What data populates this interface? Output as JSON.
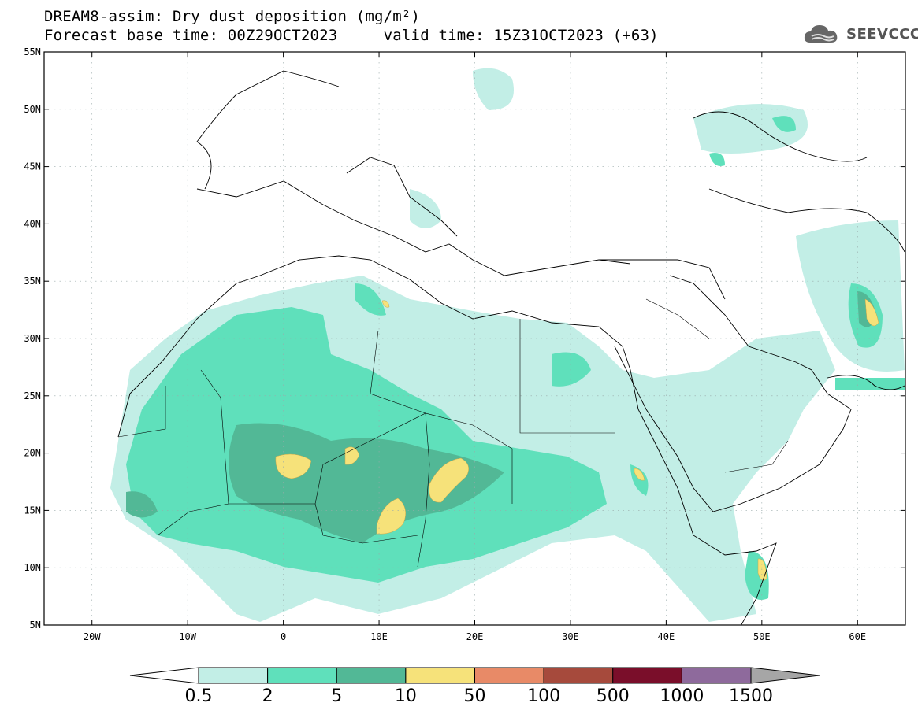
{
  "title_line1": "DREAM8-assim: Dry dust deposition (mg/m²)",
  "title_line2": "Forecast base time: 00Z29OCT2023     valid time: 15Z31OCT2023 (+63)",
  "logo_text": "SEEVCCC",
  "map": {
    "lat_labels": [
      "55N",
      "50N",
      "45N",
      "40N",
      "35N",
      "30N",
      "25N",
      "20N",
      "15N",
      "10N",
      "5N"
    ],
    "lon_labels": [
      "20W",
      "10W",
      "0",
      "10E",
      "20E",
      "30E",
      "40E",
      "50E",
      "60E"
    ],
    "lon_range": [
      -25,
      65
    ],
    "lat_range": [
      5,
      55
    ]
  },
  "colorbar": {
    "labels": [
      "0.5",
      "2",
      "5",
      "10",
      "50",
      "100",
      "500",
      "1000",
      "1500"
    ],
    "colors": [
      "#c2eee6",
      "#5fe0bb",
      "#52b896",
      "#f6e27a",
      "#e88a67",
      "#a64a3c",
      "#7a0e2a",
      "#8e6a9c",
      "#a6a6a6"
    ]
  }
}
